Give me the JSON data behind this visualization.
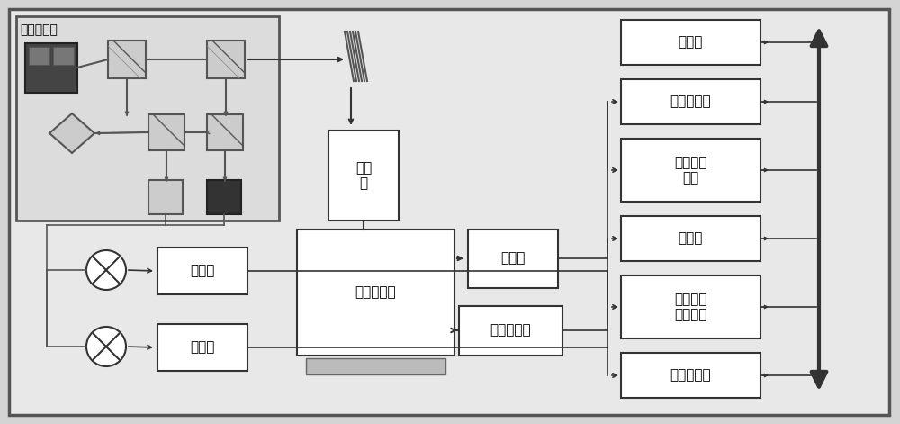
{
  "bg_color": "#d4d4d4",
  "box_fill": "#ffffff",
  "box_edge": "#333333",
  "interf_label": "激光干涉仪",
  "right_labels": [
    "计算机",
    "数字电压表",
    "数据采集\n系统",
    "控制器",
    "高速数据\n采集系统",
    "信号发生器"
  ],
  "mid_label_zhiliang": "质量\n块",
  "mid_label_zhendong": "振动台台体",
  "mid_label_fangda": "放大器",
  "mid_label_gonglv": "功率放大器",
  "mid_label_filter1": "滤波器",
  "mid_label_filter2": "滤波器"
}
